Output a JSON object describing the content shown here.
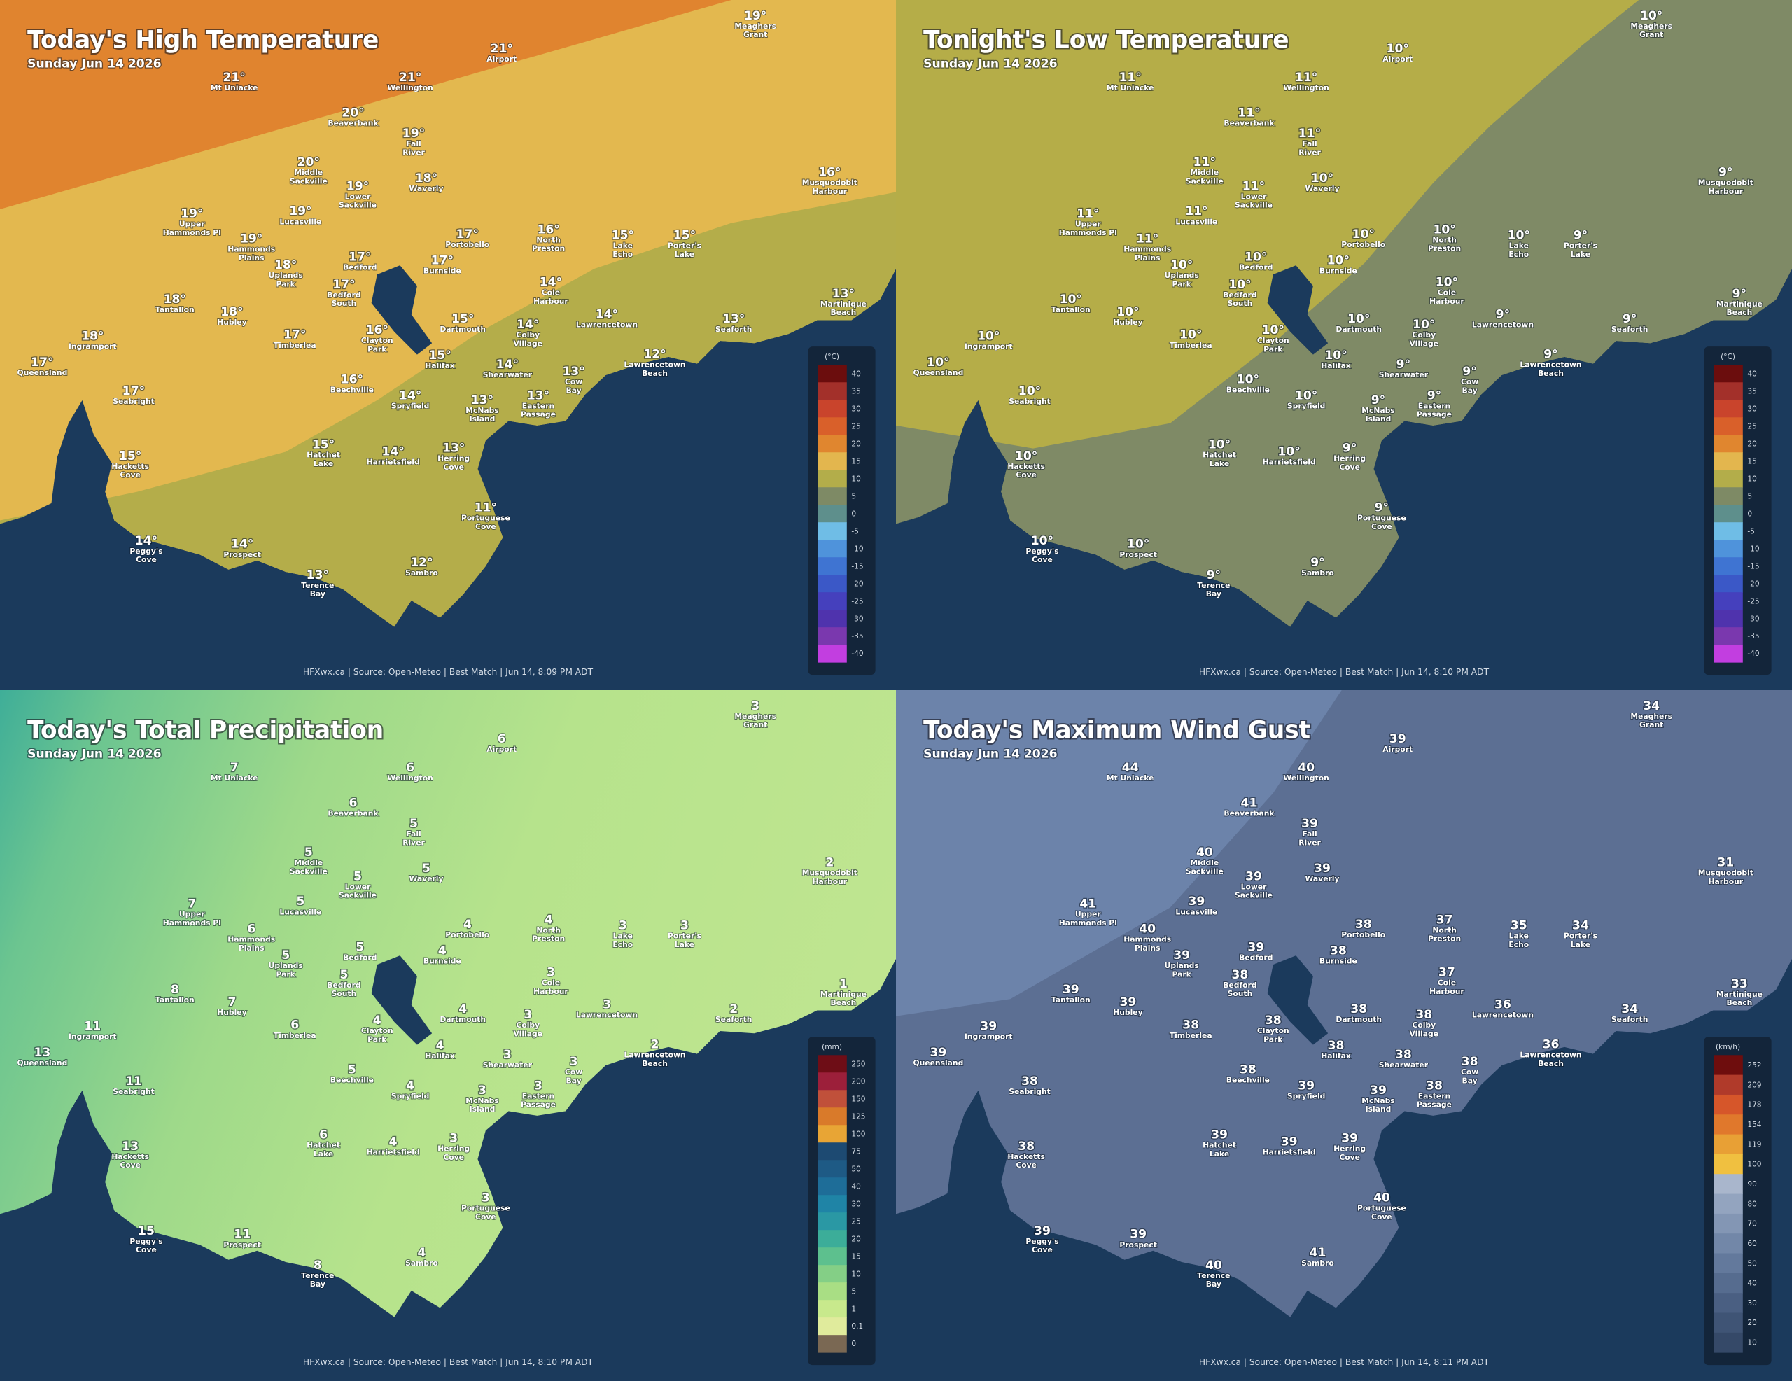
{
  "places": [
    {
      "name": [
        "Meaghers",
        "Grant"
      ]
    },
    {
      "name": [
        "Airport"
      ]
    },
    {
      "name": [
        "Mt Uniacke"
      ]
    },
    {
      "name": [
        "Wellington"
      ]
    },
    {
      "name": [
        "Beaverbank"
      ]
    },
    {
      "name": [
        "Fall",
        "River"
      ]
    },
    {
      "name": [
        "Middle",
        "Sackville"
      ]
    },
    {
      "name": [
        "Lower",
        "Sackville"
      ]
    },
    {
      "name": [
        "Waverly"
      ]
    },
    {
      "name": [
        "Musquodobit",
        "Harbour"
      ]
    },
    {
      "name": [
        "Upper",
        "Hammonds Pl"
      ]
    },
    {
      "name": [
        "Lucasville"
      ]
    },
    {
      "name": [
        "Hammonds",
        "Plains"
      ]
    },
    {
      "name": [
        "Portobello"
      ]
    },
    {
      "name": [
        "North",
        "Preston"
      ]
    },
    {
      "name": [
        "Lake",
        "Echo"
      ]
    },
    {
      "name": [
        "Porter's",
        "Lake"
      ]
    },
    {
      "name": [
        "Uplands",
        "Park"
      ]
    },
    {
      "name": [
        "Bedford"
      ]
    },
    {
      "name": [
        "Burnside"
      ]
    },
    {
      "name": [
        "Bedford",
        "South"
      ]
    },
    {
      "name": [
        "Cole",
        "Harbour"
      ]
    },
    {
      "name": [
        "Martinique",
        "Beach"
      ]
    },
    {
      "name": [
        "Tantallon"
      ]
    },
    {
      "name": [
        "Hubley"
      ]
    },
    {
      "name": [
        "Dartmouth"
      ]
    },
    {
      "name": [
        "Lawrencetown"
      ]
    },
    {
      "name": [
        "Seaforth"
      ]
    },
    {
      "name": [
        "Ingramport"
      ]
    },
    {
      "name": [
        "Timberlea"
      ]
    },
    {
      "name": [
        "Clayton",
        "Park"
      ]
    },
    {
      "name": [
        "Colby",
        "Village"
      ]
    },
    {
      "name": [
        "Halifax"
      ]
    },
    {
      "name": [
        "Lawrencetown",
        "Beach"
      ]
    },
    {
      "name": [
        "Queensland"
      ]
    },
    {
      "name": [
        "Shearwater"
      ]
    },
    {
      "name": [
        "Cow",
        "Bay"
      ]
    },
    {
      "name": [
        "Beechville"
      ]
    },
    {
      "name": [
        "Seabright"
      ]
    },
    {
      "name": [
        "Spryfield"
      ]
    },
    {
      "name": [
        "McNabs",
        "Island"
      ]
    },
    {
      "name": [
        "Eastern",
        "Passage"
      ]
    },
    {
      "name": [
        "Hatchet",
        "Lake"
      ]
    },
    {
      "name": [
        "Harrietsfield"
      ]
    },
    {
      "name": [
        "Herring",
        "Cove"
      ]
    },
    {
      "name": [
        "Hacketts",
        "Cove"
      ]
    },
    {
      "name": [
        "Portuguese",
        "Cove"
      ]
    },
    {
      "name": [
        "Peggy's",
        "Cove"
      ]
    },
    {
      "name": [
        "Prospect"
      ]
    },
    {
      "name": [
        "Sambro"
      ]
    },
    {
      "name": [
        "Terence",
        "Bay"
      ]
    }
  ],
  "panels": [
    {
      "title": "Today's High Temperature",
      "subtitle": "Sunday Jun 14 2026",
      "values": [
        "19°",
        "21°",
        "21°",
        "21°",
        "20°",
        "19°",
        "20°",
        "19°",
        "18°",
        "16°",
        "19°",
        "19°",
        "19°",
        "17°",
        "16°",
        "15°",
        "15°",
        "18°",
        "17°",
        "17°",
        "17°",
        "14°",
        "13°",
        "18°",
        "18°",
        "15°",
        "14°",
        "13°",
        "18°",
        "17°",
        "16°",
        "14°",
        "15°",
        "12°",
        "17°",
        "14°",
        "13°",
        "16°",
        "17°",
        "14°",
        "13°",
        "13°",
        "15°",
        "14°",
        "13°",
        "15°",
        "11°",
        "14°",
        "14°",
        "12°",
        "13°"
      ],
      "legend": {
        "unit": "(°C)",
        "ticks": [
          40,
          35,
          30,
          25,
          20,
          15,
          10,
          5,
          0,
          -5,
          -10,
          -15,
          -20,
          -25,
          -30,
          -35,
          -40
        ],
        "colors": [
          "#6b0d0d",
          "#a3302a",
          "#c9442c",
          "#d9602a",
          "#e0862f",
          "#e3b64e",
          "#b3ad4a",
          "#7e8a65",
          "#5e8f8c",
          "#6fbde6",
          "#4f93db",
          "#3f74d2",
          "#3b58c7",
          "#4540bd",
          "#4f33ad",
          "#7a38ae",
          "#c23ee0"
        ]
      },
      "footer": "HFXwx.ca | Source: Open-Meteo | Best Match | Jun 14, 8:09 PM ADT"
    },
    {
      "title": "Tonight's Low Temperature",
      "subtitle": "Sunday Jun 14 2026",
      "values": [
        "10°",
        "10°",
        "11°",
        "11°",
        "11°",
        "11°",
        "11°",
        "11°",
        "10°",
        "9°",
        "11°",
        "11°",
        "11°",
        "10°",
        "10°",
        "10°",
        "9°",
        "10°",
        "10°",
        "10°",
        "10°",
        "10°",
        "9°",
        "10°",
        "10°",
        "10°",
        "9°",
        "9°",
        "10°",
        "10°",
        "10°",
        "10°",
        "10°",
        "9°",
        "10°",
        "9°",
        "9°",
        "10°",
        "10°",
        "10°",
        "9°",
        "9°",
        "10°",
        "10°",
        "9°",
        "10°",
        "9°",
        "10°",
        "10°",
        "9°",
        "9°"
      ],
      "legend": {
        "unit": "(°C)",
        "ticks": [
          40,
          35,
          30,
          25,
          20,
          15,
          10,
          5,
          0,
          -5,
          -10,
          -15,
          -20,
          -25,
          -30,
          -35,
          -40
        ],
        "colors": [
          "#6b0d0d",
          "#a3302a",
          "#c9442c",
          "#d9602a",
          "#e0862f",
          "#e3b64e",
          "#b3ad4a",
          "#7e8a65",
          "#5e8f8c",
          "#6fbde6",
          "#4f93db",
          "#3f74d2",
          "#3b58c7",
          "#4540bd",
          "#4f33ad",
          "#7a38ae",
          "#c23ee0"
        ]
      },
      "footer": "HFXwx.ca | Source: Open-Meteo | Best Match | Jun 14, 8:10 PM ADT"
    },
    {
      "title": "Today's Total Precipitation",
      "subtitle": "Sunday Jun 14 2026",
      "values": [
        3,
        6,
        7,
        6,
        6,
        5,
        5,
        5,
        5,
        2,
        7,
        5,
        6,
        4,
        4,
        3,
        3,
        5,
        5,
        4,
        5,
        3,
        1,
        8,
        7,
        4,
        3,
        2,
        11,
        6,
        4,
        3,
        4,
        2,
        13,
        3,
        3,
        5,
        11,
        4,
        3,
        3,
        6,
        4,
        3,
        13,
        3,
        15,
        11,
        4,
        8
      ],
      "legend": {
        "unit": "(mm)",
        "ticks": [
          250,
          200,
          150,
          125,
          100,
          75,
          50,
          40,
          30,
          25,
          20,
          15,
          10,
          5,
          1,
          0.1,
          0
        ],
        "colors": [
          "#6e0d16",
          "#9c1f3a",
          "#c0503a",
          "#d97a2a",
          "#e8a535",
          "#1d4a72",
          "#1e5a85",
          "#1e6d98",
          "#1f84a6",
          "#2a98a4",
          "#3cad99",
          "#5dc08e",
          "#84cf86",
          "#a9de84",
          "#c8e98c",
          "#e0eb9c",
          "#7a6853"
        ]
      },
      "footer": "HFXwx.ca | Source: Open-Meteo | Best Match | Jun 14, 8:10 PM ADT"
    },
    {
      "title": "Today's Maximum Wind Gust",
      "subtitle": "Sunday Jun 14 2026",
      "values": [
        34,
        39,
        44,
        40,
        41,
        39,
        40,
        39,
        39,
        31,
        41,
        39,
        40,
        38,
        37,
        35,
        34,
        39,
        39,
        38,
        38,
        37,
        33,
        39,
        39,
        38,
        36,
        34,
        39,
        38,
        38,
        38,
        38,
        36,
        39,
        38,
        38,
        38,
        38,
        39,
        39,
        38,
        39,
        39,
        39,
        38,
        40,
        39,
        39,
        41,
        40
      ],
      "legend": {
        "unit": "(km/h)",
        "ticks": [
          252,
          209,
          178,
          154,
          119,
          100,
          90,
          80,
          70,
          60,
          50,
          40,
          30,
          20,
          10
        ],
        "colors": [
          "#6e0d0d",
          "#b03a2a",
          "#d6562a",
          "#e0782c",
          "#e8a035",
          "#f0c040",
          "#a9b6cc",
          "#93a4bf",
          "#8396b4",
          "#7287a8",
          "#63799c",
          "#566c8f",
          "#4a5f82",
          "#3f5475",
          "#354968"
        ]
      },
      "footer": "HFXwx.ca | Source: Open-Meteo | Best Match | Jun 14, 8:11 PM ADT"
    }
  ]
}
